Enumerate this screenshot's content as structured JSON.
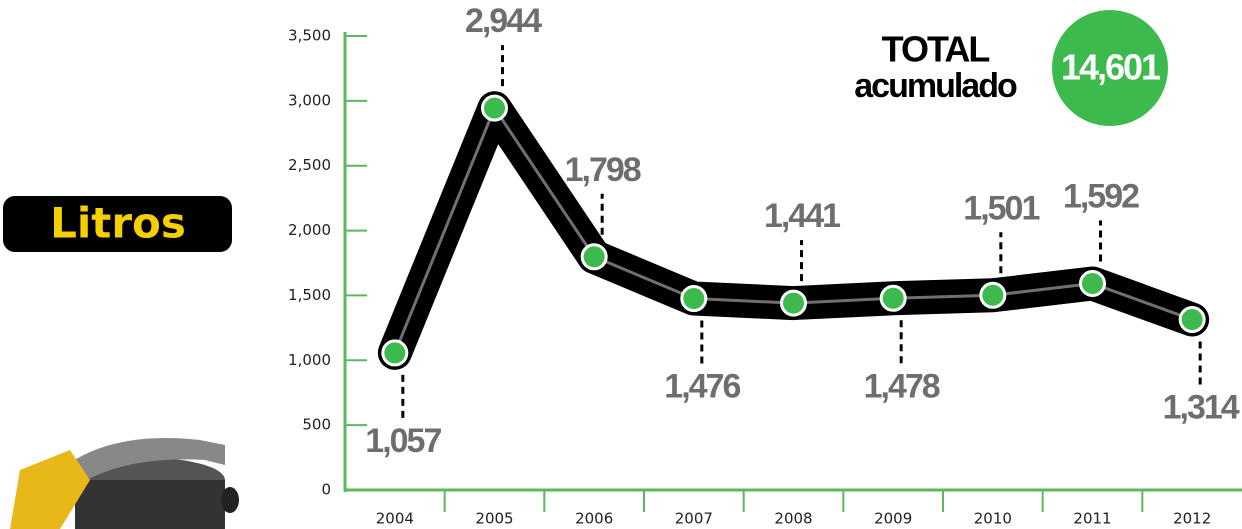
{
  "chart_data": {
    "type": "line",
    "y_label": "Litros",
    "categories": [
      "2004",
      "2005",
      "2006",
      "2007",
      "2008",
      "2009",
      "2010",
      "2011",
      "2012"
    ],
    "values": [
      1057,
      2944,
      1798,
      1476,
      1441,
      1478,
      1501,
      1592,
      1314
    ],
    "value_labels": [
      "1,057",
      "2,944",
      "1,798",
      "1,476",
      "1,441",
      "1,478",
      "1,501",
      "1,592",
      "1,314"
    ],
    "color": "#000000",
    "marker_color": "#3dba4e",
    "axis_color": "#5cb85c",
    "ylim": [
      0,
      3500
    ],
    "yticks": [
      0,
      500,
      {
        "value": 1000,
        "label": "1,000"
      },
      {
        "value": 1500,
        "label": "1,500"
      },
      {
        "value": 2000,
        "label": "2,000"
      },
      {
        "value": 2500,
        "label": "2,500"
      },
      {
        "value": 3000,
        "label": "3,000"
      },
      {
        "value": 3500,
        "label": "3,500"
      }
    ],
    "total": {
      "title": "TOTAL",
      "subtitle": "acumulado",
      "value": 14601,
      "value_label": "14,601"
    }
  }
}
